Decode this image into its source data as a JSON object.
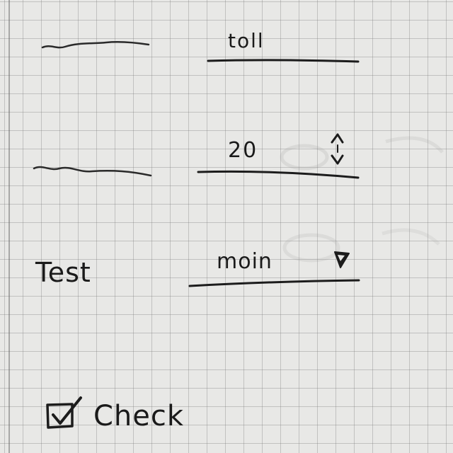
{
  "text_field": {
    "value": "toll"
  },
  "number_field": {
    "value": "20"
  },
  "select_field": {
    "label": "Test",
    "value": "moin"
  },
  "checkbox": {
    "label": "Check",
    "checked": true
  },
  "icons": {
    "stepper": "up-down-arrows-icon",
    "dropdown": "triangle-down-icon",
    "checkbox": "checkmark-icon"
  }
}
